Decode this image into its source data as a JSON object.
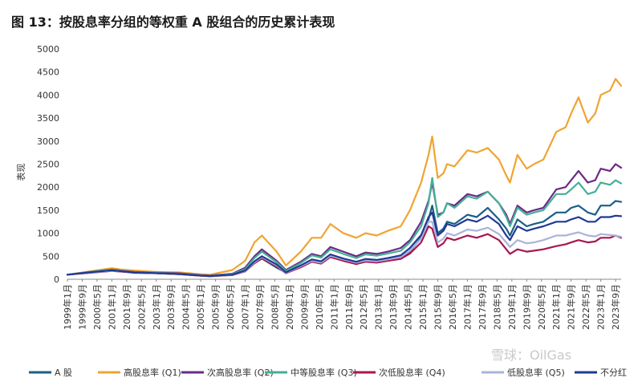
{
  "chart_data": {
    "type": "line",
    "title": "图 13：按股息率分组的等权重 A 股组合的历史累计表现",
    "ylabel": "表现",
    "xlabel": "",
    "ylim": [
      0,
      5000
    ],
    "yticks": [
      0,
      500,
      1000,
      1500,
      2000,
      2500,
      3000,
      3500,
      4000,
      4500,
      5000
    ],
    "grid": false,
    "legend_position": "bottom",
    "x_tick_labels": [
      "1999年1月",
      "1999年9月",
      "2000年5月",
      "2001年1月",
      "2001年9月",
      "2002年5月",
      "2003年1月",
      "2003年9月",
      "2004年5月",
      "2005年1月",
      "2005年9月",
      "2006年5月",
      "2007年1月",
      "2007年9月",
      "2008年5月",
      "2009年1月",
      "2009年9月",
      "2010年5月",
      "2011年1月",
      "2011年9月",
      "2012年5月",
      "2013年1月",
      "2013年9月",
      "2014年5月",
      "2015年1月",
      "2015年9月",
      "2016年5月",
      "2017年1月",
      "2017年9月",
      "2018年5月",
      "2019年1月",
      "2019年9月",
      "2020年5月",
      "2021年1月",
      "2021年9月",
      "2022年5月",
      "2023年1月",
      "2023年9月"
    ],
    "x": [
      "1999-01",
      "2000-01",
      "2001-01",
      "2001-06",
      "2002-01",
      "2003-01",
      "2004-01",
      "2005-01",
      "2005-06",
      "2006-06",
      "2007-01",
      "2007-06",
      "2007-10",
      "2008-06",
      "2008-11",
      "2009-07",
      "2010-01",
      "2010-06",
      "2010-11",
      "2011-06",
      "2012-01",
      "2012-06",
      "2012-12",
      "2013-06",
      "2014-01",
      "2014-06",
      "2014-12",
      "2015-04",
      "2015-06",
      "2015-09",
      "2015-12",
      "2016-02",
      "2016-06",
      "2017-01",
      "2017-06",
      "2017-12",
      "2018-06",
      "2018-10",
      "2018-12",
      "2019-04",
      "2019-09",
      "2020-01",
      "2020-06",
      "2021-01",
      "2021-06",
      "2021-09",
      "2022-01",
      "2022-06",
      "2022-10",
      "2023-01",
      "2023-06",
      "2023-09",
      "2023-12"
    ],
    "series": [
      {
        "name": "A 股",
        "color": "#1b5e86",
        "values": [
          100,
          150,
          200,
          170,
          140,
          130,
          110,
          80,
          70,
          100,
          180,
          350,
          450,
          250,
          150,
          280,
          400,
          350,
          500,
          400,
          330,
          400,
          380,
          420,
          480,
          600,
          900,
          1300,
          1600,
          1000,
          1100,
          1250,
          1200,
          1400,
          1350,
          1550,
          1300,
          1100,
          950,
          1300,
          1150,
          1200,
          1250,
          1450,
          1450,
          1550,
          1600,
          1450,
          1400,
          1600,
          1600,
          1700,
          1680
        ]
      },
      {
        "name": "高股息率 (Q1)",
        "color": "#f0a430",
        "values": [
          100,
          170,
          240,
          210,
          190,
          160,
          150,
          110,
          100,
          200,
          400,
          800,
          950,
          600,
          300,
          600,
          900,
          900,
          1200,
          1000,
          900,
          1000,
          950,
          1050,
          1150,
          1500,
          2100,
          2700,
          3100,
          2200,
          2300,
          2500,
          2450,
          2800,
          2750,
          2850,
          2600,
          2250,
          2100,
          2700,
          2400,
          2500,
          2600,
          3200,
          3300,
          3600,
          3950,
          3400,
          3600,
          4000,
          4100,
          4350,
          4200
        ]
      },
      {
        "name": "次高股息率 (Q2)",
        "color": "#6b2a87",
        "values": [
          100,
          160,
          210,
          185,
          160,
          145,
          130,
          90,
          80,
          120,
          250,
          500,
          650,
          400,
          200,
          380,
          550,
          500,
          700,
          600,
          500,
          580,
          550,
          600,
          680,
          850,
          1250,
          1700,
          2100,
          1400,
          1450,
          1650,
          1600,
          1850,
          1800,
          1900,
          1650,
          1400,
          1200,
          1600,
          1450,
          1500,
          1550,
          1950,
          2000,
          2150,
          2350,
          2100,
          2150,
          2400,
          2350,
          2500,
          2420
        ]
      },
      {
        "name": "中等股息率 (Q3)",
        "color": "#45b096",
        "values": [
          100,
          160,
          205,
          180,
          155,
          140,
          120,
          85,
          75,
          110,
          220,
          460,
          600,
          370,
          180,
          350,
          520,
          470,
          650,
          550,
          460,
          540,
          510,
          560,
          620,
          800,
          1150,
          1650,
          2200,
          1350,
          1450,
          1650,
          1550,
          1800,
          1750,
          1900,
          1650,
          1350,
          1150,
          1550,
          1400,
          1450,
          1500,
          1850,
          1850,
          1950,
          2100,
          1850,
          1900,
          2100,
          2050,
          2150,
          2080
        ]
      },
      {
        "name": "次低股息率 (Q4)",
        "color": "#a8174f",
        "values": [
          100,
          140,
          180,
          165,
          145,
          130,
          110,
          75,
          65,
          90,
          170,
          350,
          450,
          280,
          130,
          260,
          380,
          340,
          480,
          400,
          330,
          380,
          360,
          400,
          440,
          560,
          800,
          1150,
          1100,
          700,
          780,
          900,
          850,
          950,
          900,
          980,
          850,
          650,
          550,
          650,
          600,
          620,
          650,
          720,
          760,
          800,
          850,
          800,
          820,
          900,
          900,
          950,
          900
        ]
      },
      {
        "name": "低股息率 (Q5)",
        "color": "#aab3d9",
        "values": [
          100,
          145,
          185,
          170,
          150,
          135,
          115,
          80,
          70,
          95,
          180,
          370,
          480,
          300,
          140,
          280,
          400,
          360,
          510,
          430,
          360,
          410,
          390,
          430,
          480,
          620,
          880,
          1250,
          1250,
          800,
          880,
          1000,
          950,
          1080,
          1050,
          1120,
          980,
          800,
          700,
          850,
          780,
          800,
          850,
          950,
          950,
          980,
          1020,
          950,
          930,
          980,
          960,
          950,
          920
        ]
      },
      {
        "name": "不分红",
        "color": "#1f3a93",
        "values": [
          100,
          150,
          195,
          175,
          150,
          135,
          115,
          80,
          70,
          100,
          190,
          390,
          500,
          320,
          150,
          300,
          430,
          390,
          540,
          450,
          380,
          440,
          420,
          460,
          520,
          680,
          960,
          1350,
          1450,
          950,
          1050,
          1200,
          1150,
          1300,
          1250,
          1380,
          1200,
          950,
          850,
          1150,
          1050,
          1100,
          1150,
          1250,
          1250,
          1300,
          1350,
          1250,
          1250,
          1350,
          1350,
          1380,
          1370
        ]
      }
    ]
  },
  "watermark": "雪球：OilGas"
}
